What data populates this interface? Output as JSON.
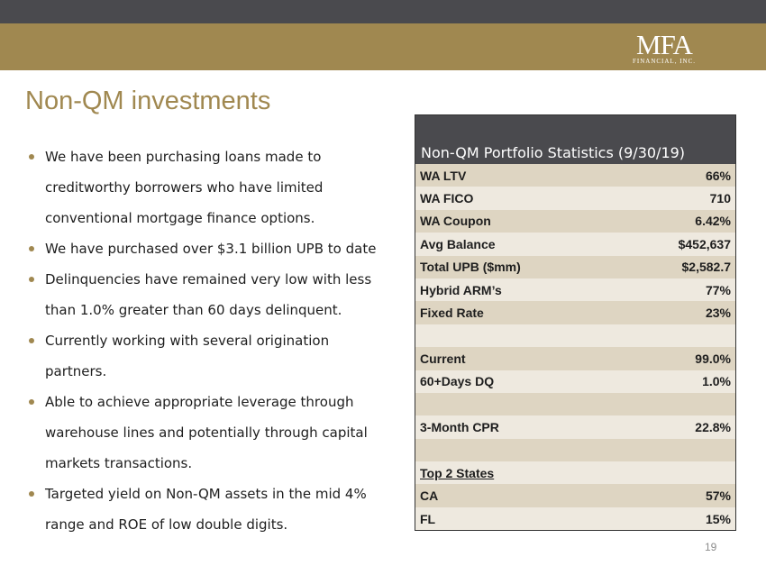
{
  "logo": {
    "mark": "MFA",
    "sub": "FINANCIAL, INC."
  },
  "title": "Non-QM investments",
  "bullets": [
    "We have been purchasing loans made to creditworthy borrowers who have limited conventional mortgage finance options.",
    "We have purchased over $3.1 billion UPB to date",
    "Delinquencies have remained very low with less than 1.0% greater than 60 days delinquent.",
    "Currently working with several origination partners.",
    "Able to achieve appropriate leverage through warehouse lines and potentially through capital markets transactions.",
    "Targeted yield on Non-QM assets in the mid 4% range and ROE of low double digits."
  ],
  "table": {
    "header": "Non-QM Portfolio Statistics (9/30/19)",
    "rows": [
      {
        "label": "WA LTV",
        "value": "66%"
      },
      {
        "label": "WA FICO",
        "value": "710"
      },
      {
        "label": "WA Coupon",
        "value": "6.42%"
      },
      {
        "label": "Avg Balance",
        "value": "$452,637"
      },
      {
        "label": "Total UPB ($mm)",
        "value": "$2,582.7"
      },
      {
        "label": "Hybrid ARM’s",
        "value": "77%"
      },
      {
        "label": "Fixed Rate",
        "value": "23%"
      },
      {
        "label": "",
        "value": ""
      },
      {
        "label": "Current",
        "value": "99.0%"
      },
      {
        "label": "60+Days DQ",
        "value": "1.0%"
      },
      {
        "label": "",
        "value": ""
      },
      {
        "label": "3-Month CPR",
        "value": "22.8%"
      },
      {
        "label": "",
        "value": ""
      },
      {
        "label": "Top 2 States",
        "value": ""
      },
      {
        "label": "CA",
        "value": "57%"
      },
      {
        "label": "FL",
        "value": "15%"
      }
    ]
  },
  "page_number": "19",
  "colors": {
    "accent": "#a08850",
    "dark": "#4a4a4e",
    "row_tan": "#ded5c2",
    "row_cream": "#eee9df"
  }
}
